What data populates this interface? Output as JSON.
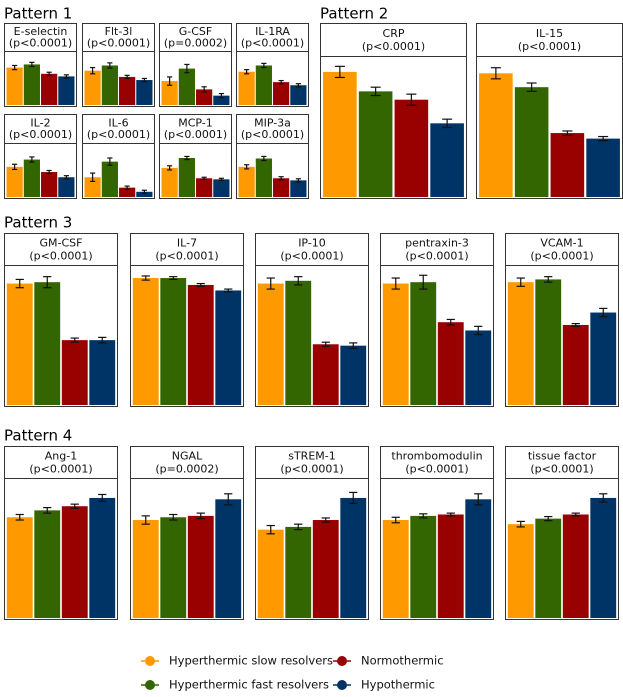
{
  "figure": {
    "legend": [
      {
        "label": "Hyperthermic slow resolvers",
        "color": "#FF9900"
      },
      {
        "label": "Normothermic",
        "color": "#990000"
      },
      {
        "label": "Hyperthermic fast resolvers",
        "color": "#336600"
      },
      {
        "label": "Hypothermic",
        "color": "#003366"
      }
    ],
    "colors": [
      "#FF9900",
      "#336600",
      "#990000",
      "#003366"
    ]
  },
  "chart_data": [
    {
      "type": "bar",
      "pattern": "Pattern 1",
      "y_axis": "hidden",
      "categories": [
        "Hyperthermic slow resolvers",
        "Hyperthermic fast resolvers",
        "Normothermic",
        "Hypothermic"
      ],
      "panels": [
        {
          "name": "E-selectin",
          "p": "(p<0.0001)",
          "values": [
            72,
            78,
            60,
            55
          ],
          "errors": [
            4,
            4,
            3,
            3
          ]
        },
        {
          "name": "Flt-3l",
          "p": "(p<0.0001)",
          "values": [
            66,
            76,
            54,
            48
          ],
          "errors": [
            6,
            5,
            3,
            3
          ]
        },
        {
          "name": "G-CSF",
          "p": "(p=0.0002)",
          "values": [
            46,
            70,
            30,
            18
          ],
          "errors": [
            8,
            8,
            5,
            4
          ]
        },
        {
          "name": "IL-1RA",
          "p": "(p<0.0001)",
          "values": [
            64,
            76,
            44,
            38
          ],
          "errors": [
            4,
            4,
            3,
            3
          ]
        },
        {
          "name": "IL-2",
          "p": "(p<0.0001)",
          "values": [
            58,
            72,
            48,
            38
          ],
          "errors": [
            5,
            5,
            3,
            3
          ]
        },
        {
          "name": "IL-6",
          "p": "(p<0.0001)",
          "values": [
            38,
            68,
            18,
            10
          ],
          "errors": [
            8,
            7,
            3,
            3
          ]
        },
        {
          "name": "MCP-1",
          "p": "(p<0.0001)",
          "values": [
            56,
            75,
            36,
            34
          ],
          "errors": [
            4,
            3,
            2,
            2
          ]
        },
        {
          "name": "MIP-3a",
          "p": "(p<0.0001)",
          "values": [
            58,
            74,
            36,
            32
          ],
          "errors": [
            4,
            4,
            3,
            3
          ]
        }
      ]
    },
    {
      "type": "bar",
      "pattern": "Pattern 2",
      "y_axis": "hidden",
      "categories": [
        "Hyperthermic slow resolvers",
        "Hyperthermic fast resolvers",
        "Normothermic",
        "Hypothermic"
      ],
      "panels": [
        {
          "name": "CRP",
          "p": "(p<0.0001)",
          "values": [
            90,
            76,
            70,
            53
          ],
          "errors": [
            4,
            3,
            4,
            3
          ]
        },
        {
          "name": "IL-15",
          "p": "(p<0.0001)",
          "values": [
            89,
            79,
            46,
            42
          ],
          "errors": [
            4,
            3,
            1.5,
            1.5
          ]
        }
      ]
    },
    {
      "type": "bar",
      "pattern": "Pattern 3",
      "y_axis": "hidden",
      "categories": [
        "Hyperthermic slow resolvers",
        "Hyperthermic fast resolvers",
        "Normothermic",
        "Hypothermic"
      ],
      "panels": [
        {
          "name": "GM-CSF",
          "p": "(p<0.0001)",
          "values": [
            88,
            89,
            47,
            47
          ],
          "errors": [
            3,
            4,
            1.5,
            2
          ]
        },
        {
          "name": "IL-7",
          "p": "(p<0.0001)",
          "values": [
            92,
            92,
            87,
            83
          ],
          "errors": [
            1.5,
            1,
            1,
            1
          ]
        },
        {
          "name": "IP-10",
          "p": "(p<0.0001)",
          "values": [
            88,
            90,
            44,
            43
          ],
          "errors": [
            4,
            3,
            1.5,
            2
          ]
        },
        {
          "name": "pentraxin-3",
          "p": "(p<0.0001)",
          "values": [
            88,
            89,
            60,
            54
          ],
          "errors": [
            4,
            5,
            2,
            3
          ]
        },
        {
          "name": "VCAM-1",
          "p": "(p<0.0001)",
          "values": [
            89,
            91,
            58,
            67
          ],
          "errors": [
            3,
            2,
            1,
            3
          ]
        }
      ]
    },
    {
      "type": "bar",
      "pattern": "Pattern 4",
      "y_axis": "hidden",
      "categories": [
        "Hyperthermic slow resolvers",
        "Hyperthermic fast resolvers",
        "Normothermic",
        "Hypothermic"
      ],
      "panels": [
        {
          "name": "Ang-1",
          "p": "(p<0.0001)",
          "values": [
            73,
            78,
            81,
            87
          ],
          "errors": [
            2,
            2,
            1.5,
            2.5
          ]
        },
        {
          "name": "NGAL",
          "p": "(p=0.0002)",
          "values": [
            71,
            73,
            74,
            86
          ],
          "errors": [
            3,
            2,
            2,
            4
          ]
        },
        {
          "name": "sTREM-1",
          "p": "(p<0.0001)",
          "values": [
            64,
            66,
            71,
            87
          ],
          "errors": [
            3,
            2,
            1.5,
            4
          ]
        },
        {
          "name": "thrombomodulin",
          "p": "(p<0.0001)",
          "values": [
            71,
            74,
            75,
            86
          ],
          "errors": [
            2,
            1.5,
            1,
            4
          ]
        },
        {
          "name": "tissue factor",
          "p": "(p<0.0001)",
          "values": [
            68,
            72,
            75,
            87
          ],
          "errors": [
            2,
            1.5,
            1,
            3
          ]
        }
      ]
    }
  ]
}
